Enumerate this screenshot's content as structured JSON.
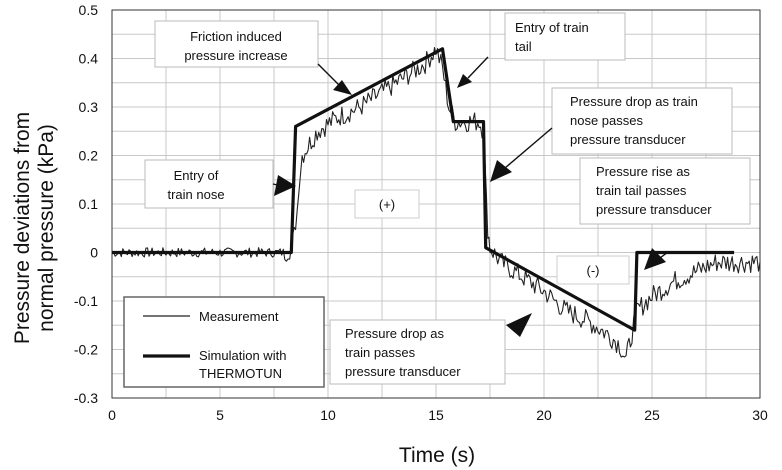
{
  "chart_data": {
    "type": "line",
    "title": "",
    "xlabel": "Time (s)",
    "ylabel_lines": [
      "Pressure deviations from",
      "normal pressure (kPa)"
    ],
    "xlim": [
      0,
      30
    ],
    "ylim": [
      -0.3,
      0.5
    ],
    "x_ticks": [
      "0",
      "5",
      "10",
      "15",
      "20",
      "25",
      "30"
    ],
    "y_ticks": [
      "0.5",
      "0.4",
      "0.3",
      "0.2",
      "0.1",
      "0",
      "-0.1",
      "-0.2",
      "-0.3"
    ],
    "grid": true,
    "legend_position": "bottom-left",
    "series": [
      {
        "name": "Measurement",
        "color": "#222222",
        "style": "thin-noisy",
        "x": [
          0,
          2,
          4,
          6,
          8,
          8.3,
          8.5,
          8.8,
          9.5,
          10.5,
          11.5,
          12.5,
          13.5,
          14.5,
          15.0,
          15.3,
          15.6,
          15.9,
          16.2,
          16.5,
          17.0,
          17.2,
          17.4,
          17.5,
          18.0,
          19.0,
          20.0,
          21.0,
          22.0,
          23.0,
          23.5,
          23.8,
          24.0,
          24.3,
          25.0,
          26.0,
          27.0,
          28.0,
          29.0,
          30.0
        ],
        "y": [
          0.0,
          0.0,
          0.0,
          0.0,
          0.0,
          0.01,
          0.05,
          0.2,
          0.25,
          0.28,
          0.3,
          0.33,
          0.36,
          0.39,
          0.42,
          0.38,
          0.3,
          0.27,
          0.27,
          0.27,
          0.27,
          0.25,
          0.05,
          0.01,
          -0.02,
          -0.05,
          -0.08,
          -0.12,
          -0.14,
          -0.17,
          -0.19,
          -0.22,
          -0.18,
          -0.12,
          -0.09,
          -0.06,
          -0.04,
          -0.02,
          -0.02,
          -0.02
        ]
      },
      {
        "name": "Simulation with THERMOTUN",
        "color": "#111111",
        "style": "thick",
        "x": [
          0,
          8.3,
          8.5,
          15.3,
          15.8,
          17.2,
          17.3,
          24.2,
          24.3,
          28.8
        ],
        "y": [
          0.0,
          0.0,
          0.26,
          0.42,
          0.27,
          0.27,
          0.01,
          -0.16,
          0.0,
          0.0
        ]
      }
    ],
    "legend_entries": [
      "Measurement",
      "Simulation with",
      "THERMOTUN"
    ],
    "annotations": [
      {
        "id": "friction",
        "lines": [
          "Friction induced",
          "pressure increase"
        ]
      },
      {
        "id": "tail-entry",
        "lines": [
          "Entry of train",
          "tail"
        ]
      },
      {
        "id": "nose-drop",
        "lines": [
          "Pressure drop as train",
          "nose passes",
          "pressure transducer"
        ]
      },
      {
        "id": "nose-entry",
        "lines": [
          "Entry of",
          "train nose"
        ]
      },
      {
        "id": "tail-rise",
        "lines": [
          "Pressure rise as",
          "train tail passes",
          "pressure transducer"
        ]
      },
      {
        "id": "plus-region",
        "lines": [
          "(+)"
        ]
      },
      {
        "id": "minus-region",
        "lines": [
          "(-)"
        ]
      },
      {
        "id": "train-drop",
        "lines": [
          "Pressure drop as",
          "train passes",
          "pressure transducer"
        ]
      }
    ]
  }
}
